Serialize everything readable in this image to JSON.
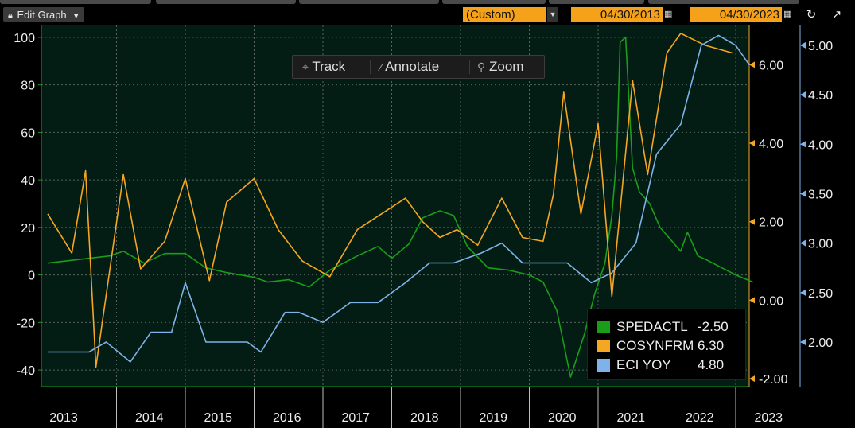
{
  "toolbar": {
    "edit_graph_label": "Edit Graph",
    "period_label": "(Custom)",
    "start_date": "04/30/2013",
    "end_date": "04/30/2023"
  },
  "float_toolbar": {
    "track_label": "Track",
    "annotate_label": "Annotate",
    "zoom_label": "Zoom"
  },
  "legend": {
    "items": [
      {
        "name": "SPEDACTL",
        "value": "-2.50",
        "color": "#1a9e1a"
      },
      {
        "name": "COSYNFRM",
        "value": "6.30",
        "color": "#f5a623"
      },
      {
        "name": "ECI YOY",
        "value": "4.80",
        "color": "#7db3e8"
      }
    ]
  },
  "chart_data": {
    "type": "line",
    "background_color": "#031c14",
    "grid": true,
    "x_ticks": [
      "2013",
      "2014",
      "2015",
      "2016",
      "2017",
      "2018",
      "2019",
      "2020",
      "2021",
      "2022",
      "2023"
    ],
    "axes": {
      "left": {
        "ticks": [
          "100",
          "80",
          "60",
          "40",
          "20",
          "0",
          "-20",
          "-40"
        ],
        "range": [
          -47,
          105
        ],
        "color": "#1a9e1a"
      },
      "right1": {
        "ticks": [
          "6.00",
          "4.00",
          "2.00",
          "0.00",
          "-2.00"
        ],
        "range": [
          -2.2,
          7.0
        ],
        "color": "#f5a623"
      },
      "right2": {
        "ticks": [
          "5.00",
          "4.50",
          "4.00",
          "3.50",
          "3.00",
          "2.50",
          "2.00"
        ],
        "range": [
          1.55,
          5.2
        ],
        "color": "#7db3e8"
      }
    },
    "series": [
      {
        "name": "SPEDACTL",
        "axis": "left",
        "color": "#1a9e1a",
        "x": [
          2013.0,
          2013.3,
          2013.6,
          2013.9,
          2014.1,
          2014.4,
          2014.7,
          2015.0,
          2015.3,
          2015.6,
          2016.0,
          2016.2,
          2016.5,
          2016.8,
          2017.1,
          2017.3,
          2017.5,
          2017.8,
          2018.0,
          2018.25,
          2018.45,
          2018.7,
          2018.9,
          2019.1,
          2019.4,
          2019.7,
          2020.0,
          2020.2,
          2020.4,
          2020.6,
          2020.8,
          2020.95,
          2021.1,
          2021.2,
          2021.27,
          2021.32,
          2021.4,
          2021.5,
          2021.6,
          2021.75,
          2021.9,
          2022.05,
          2022.2,
          2022.3,
          2022.45,
          2022.6,
          2022.8,
          2023.0,
          2023.25
        ],
        "y": [
          5,
          6,
          7,
          8,
          10,
          5,
          9,
          9,
          3,
          1,
          -1,
          -3,
          -2,
          -5,
          2,
          5,
          8,
          12,
          7,
          13,
          24,
          27,
          25,
          12,
          3,
          2,
          0,
          -3,
          -15,
          -43,
          -25,
          -8,
          5,
          25,
          50,
          98,
          100,
          45,
          35,
          30,
          20,
          15,
          10,
          18,
          8,
          6,
          3,
          0,
          -3
        ]
      },
      {
        "name": "COSYNFRM",
        "axis": "right1",
        "color": "#f5a623",
        "x": [
          2013.0,
          2013.35,
          2013.55,
          2013.7,
          2014.1,
          2014.35,
          2014.7,
          2015.0,
          2015.35,
          2015.6,
          2016.0,
          2016.35,
          2016.7,
          2017.1,
          2017.5,
          2017.85,
          2018.2,
          2018.45,
          2018.7,
          2018.95,
          2019.25,
          2019.6,
          2019.9,
          2020.2,
          2020.35,
          2020.5,
          2020.75,
          2021.0,
          2021.2,
          2021.5,
          2021.72,
          2022.0,
          2022.2,
          2022.55,
          2022.95
        ],
        "y": [
          2.2,
          1.2,
          3.3,
          -1.7,
          3.2,
          0.8,
          1.5,
          3.1,
          0.5,
          2.5,
          3.1,
          1.8,
          1.0,
          0.6,
          1.8,
          2.2,
          2.6,
          2.0,
          1.6,
          1.8,
          1.4,
          2.6,
          1.6,
          1.5,
          2.7,
          5.3,
          2.2,
          4.5,
          0.1,
          5.6,
          3.2,
          6.3,
          6.8,
          6.5,
          6.3
        ]
      },
      {
        "name": "ECI YOY",
        "axis": "right2",
        "color": "#7db3e8",
        "x": [
          2013.0,
          2013.35,
          2013.6,
          2013.85,
          2014.2,
          2014.5,
          2014.8,
          2015.0,
          2015.3,
          2015.6,
          2015.9,
          2016.1,
          2016.45,
          2016.65,
          2017.0,
          2017.4,
          2017.8,
          2018.2,
          2018.55,
          2018.9,
          2019.3,
          2019.6,
          2019.9,
          2020.2,
          2020.55,
          2020.9,
          2021.2,
          2021.55,
          2021.85,
          2022.2,
          2022.5,
          2022.75,
          2023.0,
          2023.2
        ],
        "y": [
          1.9,
          1.9,
          1.9,
          2.0,
          1.8,
          2.1,
          2.1,
          2.6,
          2.0,
          2.0,
          2.0,
          1.9,
          2.3,
          2.3,
          2.2,
          2.4,
          2.4,
          2.6,
          2.8,
          2.8,
          2.9,
          3.0,
          2.8,
          2.8,
          2.8,
          2.6,
          2.7,
          3.0,
          3.9,
          4.2,
          5.0,
          5.1,
          5.0,
          4.8
        ]
      }
    ]
  }
}
